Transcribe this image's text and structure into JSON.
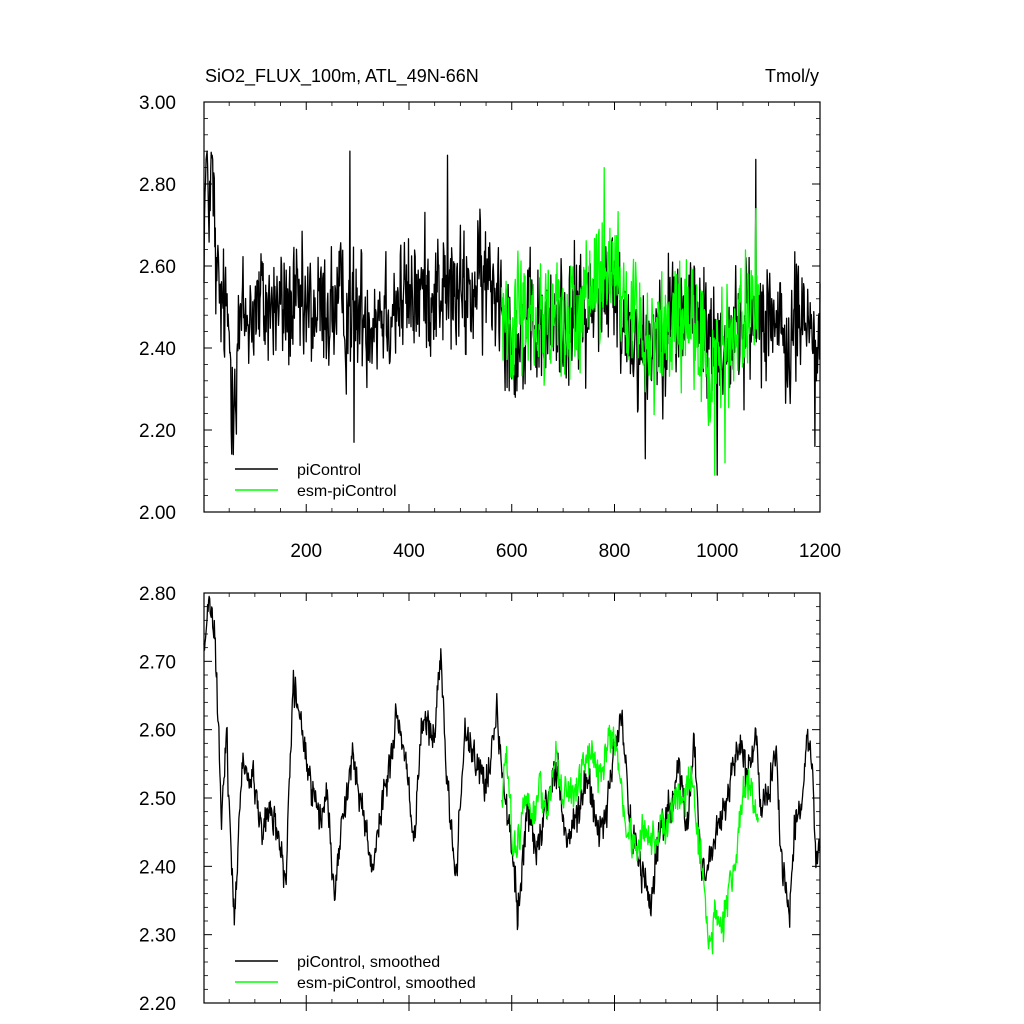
{
  "chart_data": [
    {
      "type": "line",
      "title": "SiO2_FLUX_100m, ATL_49N-66N",
      "units": "Tmol/y",
      "xlabel": "",
      "ylabel": "",
      "xlim": [
        1,
        1200
      ],
      "ylim": [
        2.0,
        3.0
      ],
      "x_ticks": [
        200,
        400,
        600,
        800,
        1000,
        1200
      ],
      "x_tick_labels": [
        "200",
        "400",
        "600",
        "800",
        "1000",
        "1200"
      ],
      "y_ticks": [
        2.0,
        2.2,
        2.4,
        2.6,
        2.8,
        3.0
      ],
      "y_tick_labels": [
        "2.00",
        "2.20",
        "2.40",
        "2.60",
        "2.80",
        "3.00"
      ],
      "legend_position": "bottom-left",
      "series": [
        {
          "name": "piControl",
          "color": "#000000",
          "x_range": [
            1,
            1200
          ],
          "anchors": [
            [
              1,
              2.7
            ],
            [
              5,
              2.82
            ],
            [
              10,
              2.78
            ],
            [
              15,
              2.8
            ],
            [
              20,
              2.75
            ],
            [
              25,
              2.55
            ],
            [
              35,
              2.5
            ],
            [
              50,
              2.45
            ],
            [
              55,
              2.3
            ],
            [
              70,
              2.45
            ],
            [
              100,
              2.5
            ],
            [
              150,
              2.5
            ],
            [
              200,
              2.48
            ],
            [
              250,
              2.5
            ],
            [
              300,
              2.48
            ],
            [
              350,
              2.5
            ],
            [
              400,
              2.52
            ],
            [
              450,
              2.55
            ],
            [
              500,
              2.52
            ],
            [
              550,
              2.56
            ],
            [
              580,
              2.55
            ],
            [
              600,
              2.42
            ],
            [
              650,
              2.44
            ],
            [
              700,
              2.47
            ],
            [
              750,
              2.5
            ],
            [
              790,
              2.55
            ],
            [
              820,
              2.46
            ],
            [
              860,
              2.4
            ],
            [
              900,
              2.47
            ],
            [
              950,
              2.5
            ],
            [
              1000,
              2.4
            ],
            [
              1050,
              2.45
            ],
            [
              1100,
              2.52
            ],
            [
              1130,
              2.38
            ],
            [
              1160,
              2.48
            ],
            [
              1200,
              2.43
            ]
          ],
          "noise_sd": 0.09,
          "extremes": [
            [
              7,
              2.88,
              "max"
            ],
            [
              17,
              2.87,
              "max"
            ],
            [
              64,
              2.19,
              "min"
            ],
            [
              293,
              2.17,
              "min"
            ],
            [
              285,
              2.88,
              "max"
            ],
            [
              475,
              2.87,
              "max"
            ],
            [
              860,
              2.13,
              "min"
            ],
            [
              1000,
              2.09,
              "min"
            ],
            [
              1190,
              2.16,
              "min"
            ],
            [
              1075,
              2.86,
              "max"
            ]
          ]
        },
        {
          "name": "esm-piControl",
          "color": "#00ff00",
          "x_range": [
            580,
            1080
          ],
          "anchors": [
            [
              580,
              2.5
            ],
            [
              620,
              2.47
            ],
            [
              660,
              2.48
            ],
            [
              700,
              2.47
            ],
            [
              740,
              2.5
            ],
            [
              780,
              2.56
            ],
            [
              800,
              2.55
            ],
            [
              830,
              2.46
            ],
            [
              870,
              2.44
            ],
            [
              920,
              2.45
            ],
            [
              960,
              2.42
            ],
            [
              990,
              2.35
            ],
            [
              1020,
              2.42
            ],
            [
              1050,
              2.47
            ],
            [
              1080,
              2.5
            ]
          ],
          "noise_sd": 0.085,
          "extremes": [
            [
              780,
              2.84,
              "max"
            ],
            [
              995,
              2.09,
              "min"
            ],
            [
              1015,
              2.12,
              "min"
            ],
            [
              1075,
              2.74,
              "max"
            ]
          ]
        }
      ]
    },
    {
      "type": "line",
      "title": "",
      "xlabel": "",
      "ylabel": "",
      "xlim": [
        1,
        1200
      ],
      "ylim": [
        2.2,
        2.8
      ],
      "y_ticks": [
        2.2,
        2.3,
        2.4,
        2.5,
        2.6,
        2.7,
        2.8
      ],
      "y_tick_labels": [
        "2.20",
        "2.30",
        "2.40",
        "2.50",
        "2.60",
        "2.70",
        "2.80"
      ],
      "legend_position": "bottom-left",
      "series": [
        {
          "name": "piControl, smoothed",
          "color": "#000000",
          "x_range": [
            1,
            1200
          ],
          "anchors": [
            [
              1,
              2.71
            ],
            [
              8,
              2.77
            ],
            [
              15,
              2.78
            ],
            [
              25,
              2.7
            ],
            [
              35,
              2.46
            ],
            [
              45,
              2.59
            ],
            [
              60,
              2.32
            ],
            [
              75,
              2.55
            ],
            [
              95,
              2.53
            ],
            [
              115,
              2.45
            ],
            [
              130,
              2.49
            ],
            [
              150,
              2.43
            ],
            [
              160,
              2.38
            ],
            [
              175,
              2.67
            ],
            [
              200,
              2.56
            ],
            [
              225,
              2.46
            ],
            [
              240,
              2.5
            ],
            [
              255,
              2.36
            ],
            [
              275,
              2.5
            ],
            [
              290,
              2.56
            ],
            [
              310,
              2.48
            ],
            [
              330,
              2.4
            ],
            [
              350,
              2.5
            ],
            [
              375,
              2.61
            ],
            [
              395,
              2.55
            ],
            [
              410,
              2.43
            ],
            [
              425,
              2.62
            ],
            [
              450,
              2.58
            ],
            [
              462,
              2.71
            ],
            [
              475,
              2.52
            ],
            [
              490,
              2.38
            ],
            [
              510,
              2.61
            ],
            [
              530,
              2.55
            ],
            [
              550,
              2.52
            ],
            [
              570,
              2.62
            ],
            [
              590,
              2.48
            ],
            [
              605,
              2.4
            ],
            [
              612,
              2.33
            ],
            [
              630,
              2.48
            ],
            [
              650,
              2.42
            ],
            [
              670,
              2.5
            ],
            [
              690,
              2.55
            ],
            [
              705,
              2.43
            ],
            [
              720,
              2.46
            ],
            [
              745,
              2.52
            ],
            [
              770,
              2.45
            ],
            [
              785,
              2.48
            ],
            [
              800,
              2.58
            ],
            [
              815,
              2.61
            ],
            [
              830,
              2.47
            ],
            [
              850,
              2.4
            ],
            [
              870,
              2.34
            ],
            [
              885,
              2.44
            ],
            [
              910,
              2.48
            ],
            [
              925,
              2.55
            ],
            [
              940,
              2.45
            ],
            [
              955,
              2.58
            ],
            [
              970,
              2.39
            ],
            [
              985,
              2.41
            ],
            [
              1000,
              2.46
            ],
            [
              1015,
              2.48
            ],
            [
              1030,
              2.55
            ],
            [
              1045,
              2.57
            ],
            [
              1060,
              2.53
            ],
            [
              1075,
              2.59
            ],
            [
              1085,
              2.48
            ],
            [
              1100,
              2.52
            ],
            [
              1115,
              2.56
            ],
            [
              1125,
              2.4
            ],
            [
              1140,
              2.33
            ],
            [
              1150,
              2.45
            ],
            [
              1165,
              2.5
            ],
            [
              1175,
              2.59
            ],
            [
              1185,
              2.55
            ],
            [
              1192,
              2.42
            ],
            [
              1200,
              2.43
            ]
          ],
          "noise_sd": 0.015
        },
        {
          "name": "esm-piControl, smoothed",
          "color": "#00ff00",
          "x_range": [
            580,
            1080
          ],
          "anchors": [
            [
              580,
              2.5
            ],
            [
              590,
              2.57
            ],
            [
              600,
              2.44
            ],
            [
              610,
              2.42
            ],
            [
              625,
              2.49
            ],
            [
              640,
              2.47
            ],
            [
              655,
              2.52
            ],
            [
              670,
              2.48
            ],
            [
              685,
              2.58
            ],
            [
              700,
              2.5
            ],
            [
              720,
              2.51
            ],
            [
              745,
              2.55
            ],
            [
              760,
              2.56
            ],
            [
              775,
              2.52
            ],
            [
              785,
              2.57
            ],
            [
              795,
              2.59
            ],
            [
              805,
              2.57
            ],
            [
              820,
              2.47
            ],
            [
              840,
              2.43
            ],
            [
              860,
              2.45
            ],
            [
              880,
              2.44
            ],
            [
              900,
              2.46
            ],
            [
              920,
              2.51
            ],
            [
              935,
              2.5
            ],
            [
              950,
              2.53
            ],
            [
              965,
              2.42
            ],
            [
              975,
              2.38
            ],
            [
              985,
              2.27
            ],
            [
              995,
              2.34
            ],
            [
              1005,
              2.31
            ],
            [
              1015,
              2.33
            ],
            [
              1030,
              2.38
            ],
            [
              1045,
              2.48
            ],
            [
              1060,
              2.52
            ],
            [
              1075,
              2.47
            ],
            [
              1080,
              2.49
            ]
          ],
          "noise_sd": 0.015
        }
      ]
    }
  ]
}
